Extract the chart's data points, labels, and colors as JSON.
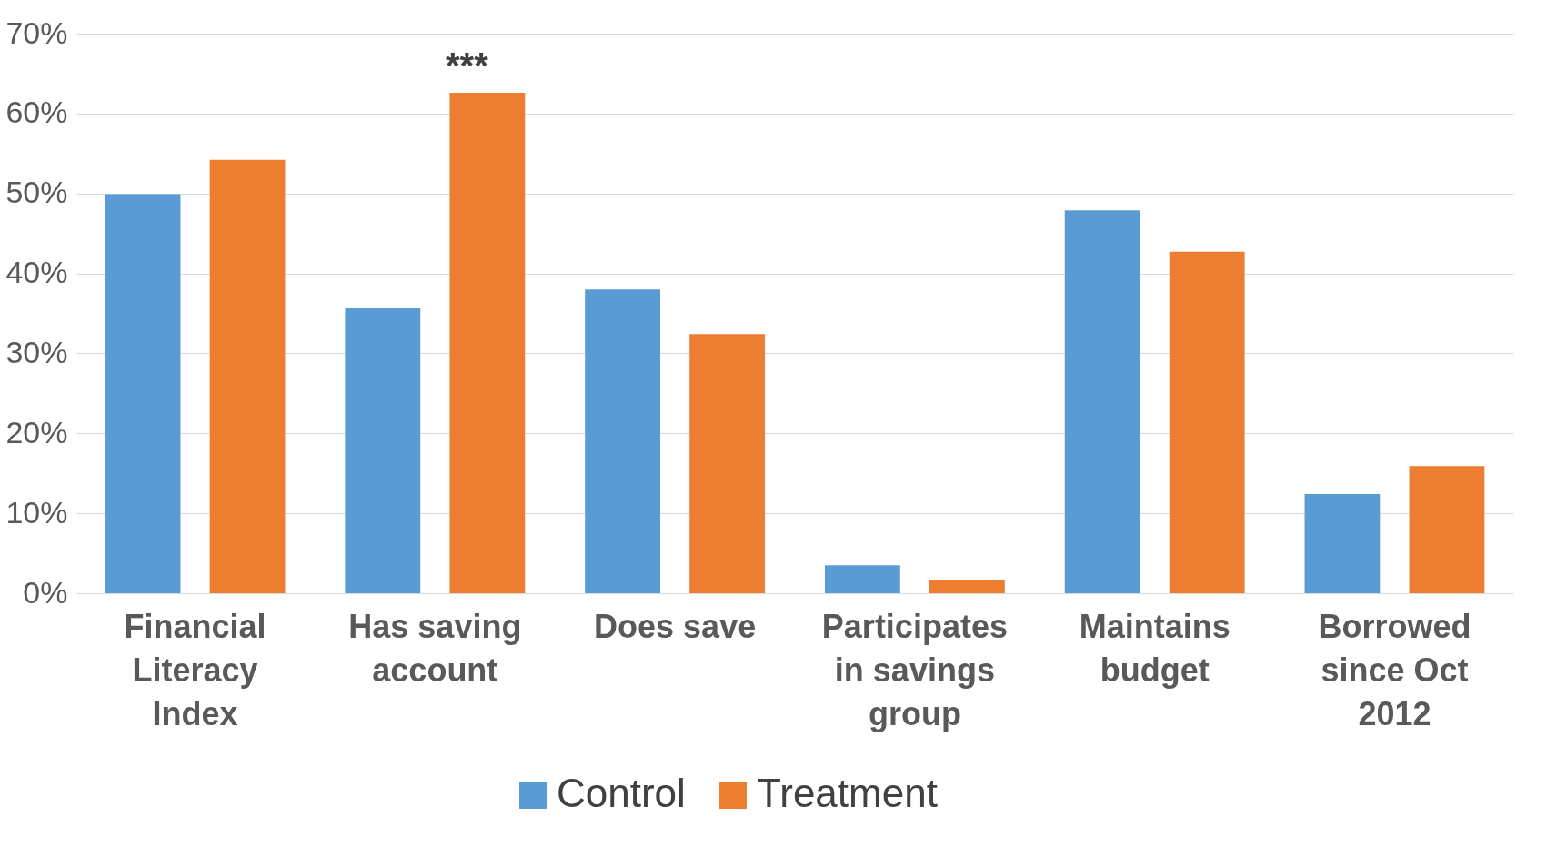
{
  "chart_data": {
    "type": "bar",
    "categories": [
      "Financial Literacy Index",
      "Has saving account",
      "Does save",
      "Participates in savings group",
      "Maintains budget",
      "Borrowed since Oct 2012"
    ],
    "series": [
      {
        "name": "Control",
        "color": "#5b9bd5",
        "values": [
          49.9,
          35.7,
          38.0,
          3.5,
          47.9,
          12.4
        ]
      },
      {
        "name": "Treatment",
        "color": "#ed7d31",
        "values": [
          54.2,
          62.6,
          32.4,
          1.6,
          42.7,
          15.9
        ]
      }
    ],
    "ylim": [
      0,
      70
    ],
    "yticks": [
      {
        "value": 0,
        "label": "0%"
      },
      {
        "value": 10,
        "label": "10%"
      },
      {
        "value": 20,
        "label": "20%"
      },
      {
        "value": 30,
        "label": "30%"
      },
      {
        "value": 40,
        "label": "40%"
      },
      {
        "value": 50,
        "label": "50%"
      },
      {
        "value": 60,
        "label": "60%"
      },
      {
        "value": 70,
        "label": "70%"
      }
    ],
    "annotations": [
      "***"
    ],
    "grid": "y",
    "legend": "bottom"
  }
}
